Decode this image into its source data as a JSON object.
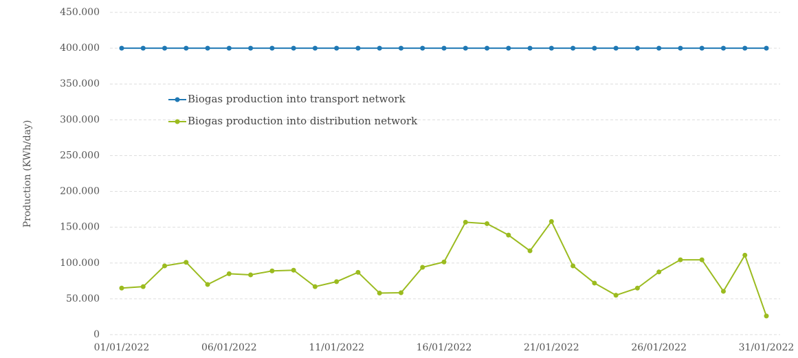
{
  "chart_data": {
    "type": "line",
    "y_label": "Production (KWh/day)",
    "categories": [
      "01/01/2022",
      null,
      null,
      null,
      null,
      "06/01/2022",
      null,
      null,
      null,
      null,
      "11/01/2022",
      null,
      null,
      null,
      null,
      "16/01/2022",
      null,
      null,
      null,
      null,
      "21/01/2022",
      null,
      null,
      null,
      null,
      "26/01/2022",
      null,
      null,
      null,
      null,
      "31/01/2022"
    ],
    "series": [
      {
        "name": "Biogas production into transport network",
        "color": "#1f78b4",
        "values": [
          400000,
          400000,
          400000,
          400000,
          400000,
          400000,
          400000,
          400000,
          400000,
          400000,
          400000,
          400000,
          400000,
          400000,
          400000,
          400000,
          400000,
          400000,
          400000,
          400000,
          400000,
          400000,
          400000,
          400000,
          400000,
          400000,
          400000,
          400000,
          400000,
          400000,
          400000
        ]
      },
      {
        "name": "Biogas production into distribution network",
        "color": "#9bbb1f",
        "values": [
          65000,
          67000,
          96000,
          101000,
          70000,
          85000,
          83500,
          89000,
          90000,
          67000,
          74000,
          87000,
          58000,
          58500,
          94000,
          101500,
          157000,
          155000,
          139000,
          117000,
          158000,
          96000,
          72000,
          55000,
          65000,
          87500,
          104500,
          104500,
          60500,
          111000,
          26000
        ]
      }
    ],
    "ylim": [
      0,
      450000
    ],
    "yticks": [
      0,
      {
        "value": 50000,
        "label": "50.000"
      },
      {
        "value": 100000,
        "label": "100.000"
      },
      {
        "value": 150000,
        "label": "150.000"
      },
      {
        "value": 200000,
        "label": "200.000"
      },
      {
        "value": 250000,
        "label": "250.000"
      },
      {
        "value": 300000,
        "label": "300.000"
      },
      {
        "value": 350000,
        "label": "350.000"
      },
      {
        "value": 400000,
        "label": "400.000"
      },
      {
        "value": 450000,
        "label": "450.000"
      }
    ],
    "grid": true
  }
}
